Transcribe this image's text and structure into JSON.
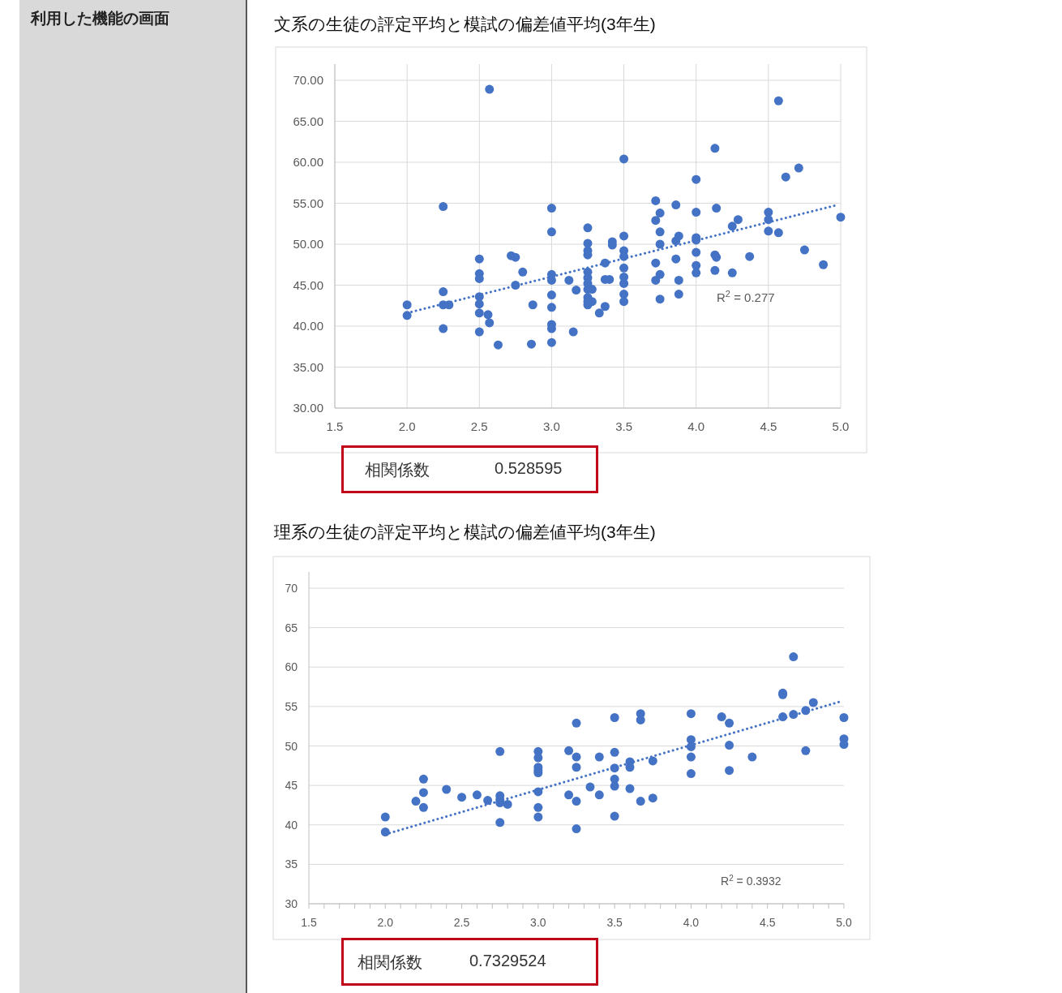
{
  "chart_data": [
    {
      "type": "scatter",
      "title": "文系の生徒の評定平均と模試の偏差値平均(3年生)",
      "xlim": [
        1.5,
        5.0
      ],
      "ylim": [
        30,
        70
      ],
      "grid": true,
      "marker": "circle",
      "xticks": [
        {
          "value": 1.5,
          "label": "1.5"
        },
        {
          "value": 2.0,
          "label": "2.0"
        },
        {
          "value": 2.5,
          "label": "2.5"
        },
        {
          "value": 3.0,
          "label": "3.0"
        },
        {
          "value": 3.5,
          "label": "3.5"
        },
        {
          "value": 4.0,
          "label": "4.0"
        },
        {
          "value": 4.5,
          "label": "4.5"
        },
        {
          "value": 5.0,
          "label": "5.0"
        }
      ],
      "yticks": [
        {
          "value": 30,
          "label": "30.00"
        },
        {
          "value": 35,
          "label": "35.00"
        },
        {
          "value": 40,
          "label": "40.00"
        },
        {
          "value": 45,
          "label": "45.00"
        },
        {
          "value": 50,
          "label": "50.00"
        },
        {
          "value": 55,
          "label": "55.00"
        },
        {
          "value": 60,
          "label": "60.00"
        },
        {
          "value": 65,
          "label": "65.00"
        },
        {
          "value": 70,
          "label": "70.00"
        }
      ],
      "series": [
        {
          "color": "#4472c4",
          "x": [
            2.57,
            2.25,
            2.0,
            2.0,
            2.25,
            2.25,
            2.29,
            2.25,
            2.5,
            2.5,
            2.5,
            2.5,
            2.5,
            2.5,
            2.56,
            2.57,
            2.5,
            2.63,
            2.72,
            2.75,
            2.8,
            2.75,
            2.87,
            2.86,
            3.0,
            3.0,
            3.0,
            3.0,
            3.0,
            3.0,
            3.0,
            3.0,
            3.0,
            3.12,
            3.17,
            3.15,
            3.25,
            3.25,
            3.25,
            3.25,
            3.25,
            3.25,
            3.25,
            3.25,
            3.25,
            3.25,
            3.25,
            3.28,
            3.28,
            3.37,
            3.37,
            3.4,
            3.37,
            3.33,
            3.42,
            3.42,
            3.5,
            3.5,
            3.5,
            3.5,
            3.5,
            3.5,
            3.5,
            3.5,
            3.5,
            3.72,
            3.75,
            3.72,
            3.75,
            3.75,
            3.72,
            3.75,
            3.72,
            3.75,
            3.86,
            3.86,
            3.88,
            3.86,
            3.88,
            3.88,
            4.0,
            4.0,
            4.0,
            4.0,
            4.0,
            4.0,
            4.0,
            4.13,
            4.14,
            4.13,
            4.14,
            4.13,
            4.25,
            4.29,
            4.25,
            4.37,
            4.5,
            4.5,
            4.5,
            4.57,
            4.57,
            4.62,
            4.71,
            4.75,
            4.88,
            5.0
          ],
          "values": [
            68.9,
            54.6,
            42.6,
            41.3,
            44.2,
            42.6,
            42.6,
            39.7,
            48.2,
            46.4,
            45.8,
            43.6,
            42.7,
            41.6,
            41.4,
            40.4,
            39.3,
            37.7,
            48.6,
            48.4,
            46.6,
            45.0,
            42.6,
            37.8,
            54.4,
            51.5,
            46.3,
            45.6,
            43.8,
            42.3,
            40.2,
            39.7,
            38.0,
            45.6,
            44.4,
            39.3,
            52.0,
            50.1,
            49.2,
            48.7,
            46.6,
            45.9,
            45.2,
            44.5,
            43.5,
            43.0,
            42.6,
            44.5,
            43.0,
            47.7,
            45.7,
            45.7,
            42.4,
            41.6,
            50.3,
            49.9,
            60.4,
            51.0,
            49.2,
            48.5,
            47.1,
            46.0,
            45.2,
            43.9,
            43.0,
            55.3,
            53.8,
            52.9,
            51.5,
            50.0,
            47.7,
            46.3,
            45.6,
            43.3,
            54.8,
            50.4,
            51.0,
            48.2,
            45.6,
            43.9,
            57.9,
            53.9,
            50.8,
            50.5,
            49.0,
            47.4,
            46.5,
            61.7,
            54.4,
            48.7,
            48.4,
            46.8,
            52.2,
            53.0,
            46.5,
            48.5,
            53.9,
            53.0,
            51.6,
            51.4,
            67.5,
            58.2,
            59.3,
            49.3,
            47.5,
            53.3
          ]
        },
        {
          "type": "line",
          "color": "#4472c4",
          "marker": "none",
          "line_style": "dotted",
          "x": [
            2.0,
            4.98
          ],
          "values": [
            41.6,
            54.8
          ]
        }
      ],
      "annotations": [
        "利用した機能の画面",
        "R$^{2}$ = 0.277",
        "相関係数",
        "0.528595"
      ]
    },
    {
      "type": "scatter",
      "title": "理系の生徒の評定平均と模試の偏差値平均(3年生)",
      "xlim": [
        1.5,
        5.0
      ],
      "ylim": [
        30,
        70
      ],
      "grid": "y",
      "marker": "circle",
      "xticks": [
        {
          "value": 1.5,
          "label": "1.5"
        },
        {
          "value": 1.6,
          "label": null
        },
        {
          "value": 1.7,
          "label": null
        },
        {
          "value": 1.8,
          "label": null
        },
        {
          "value": 1.9,
          "label": null
        },
        {
          "value": 2.0,
          "label": "2.0"
        },
        {
          "value": 2.1,
          "label": null
        },
        {
          "value": 2.2,
          "label": null
        },
        {
          "value": 2.3,
          "label": null
        },
        {
          "value": 2.4,
          "label": null
        },
        {
          "value": 2.5,
          "label": "2.5"
        },
        {
          "value": 2.6,
          "label": null
        },
        {
          "value": 2.7,
          "label": null
        },
        {
          "value": 2.8,
          "label": null
        },
        {
          "value": 2.9,
          "label": null
        },
        {
          "value": 3.0,
          "label": "3.0"
        },
        {
          "value": 3.1,
          "label": null
        },
        {
          "value": 3.2,
          "label": null
        },
        {
          "value": 3.3,
          "label": null
        },
        {
          "value": 3.4,
          "label": null
        },
        {
          "value": 3.5,
          "label": "3.5"
        },
        {
          "value": 3.6,
          "label": null
        },
        {
          "value": 3.7,
          "label": null
        },
        {
          "value": 3.8,
          "label": null
        },
        {
          "value": 3.9,
          "label": null
        },
        {
          "value": 4.0,
          "label": "4.0"
        },
        {
          "value": 4.1,
          "label": null
        },
        {
          "value": 4.2,
          "label": null
        },
        {
          "value": 4.3,
          "label": null
        },
        {
          "value": 4.4,
          "label": null
        },
        {
          "value": 4.5,
          "label": "4.5"
        },
        {
          "value": 4.6,
          "label": null
        },
        {
          "value": 4.7,
          "label": null
        },
        {
          "value": 4.8,
          "label": null
        },
        {
          "value": 4.9,
          "label": null
        },
        {
          "value": 5.0,
          "label": "5.0"
        }
      ],
      "yticks": [
        30,
        35,
        40,
        45,
        50,
        55,
        60,
        65,
        70
      ],
      "series": [
        {
          "color": "#4472c4",
          "x": [
            2.0,
            2.0,
            2.2,
            2.25,
            2.25,
            2.25,
            2.4,
            2.5,
            2.6,
            2.67,
            2.75,
            2.75,
            2.75,
            2.75,
            2.8,
            2.75,
            3.0,
            3.0,
            3.0,
            3.0,
            3.0,
            3.0,
            3.0,
            3.0,
            3.2,
            3.2,
            3.25,
            3.25,
            3.25,
            3.25,
            3.25,
            3.34,
            3.4,
            3.4,
            3.5,
            3.5,
            3.5,
            3.5,
            3.5,
            3.5,
            3.6,
            3.6,
            3.6,
            3.67,
            3.67,
            3.67,
            3.75,
            3.75,
            4.0,
            4.0,
            4.0,
            4.0,
            4.0,
            4.2,
            4.25,
            4.25,
            4.25,
            4.4,
            4.6,
            4.6,
            4.6,
            4.67,
            4.67,
            4.75,
            4.75,
            4.8,
            5.0,
            5.0,
            5.0
          ],
          "values": [
            41.0,
            39.1,
            43.0,
            45.8,
            44.1,
            42.2,
            44.5,
            43.5,
            43.8,
            43.1,
            49.3,
            43.7,
            43.2,
            42.8,
            42.6,
            40.3,
            49.3,
            48.5,
            47.3,
            46.9,
            46.6,
            44.2,
            42.2,
            41.0,
            49.4,
            43.8,
            52.9,
            48.6,
            47.3,
            43.0,
            39.5,
            44.8,
            48.6,
            43.8,
            53.6,
            49.2,
            47.2,
            45.8,
            44.9,
            41.1,
            48.0,
            47.3,
            44.6,
            54.1,
            53.3,
            43.0,
            48.1,
            43.4,
            54.1,
            50.8,
            49.9,
            48.6,
            46.5,
            53.7,
            52.9,
            50.1,
            46.9,
            48.6,
            56.7,
            56.5,
            53.7,
            61.3,
            54.0,
            54.5,
            49.4,
            55.5,
            53.6,
            50.9,
            50.2
          ]
        },
        {
          "type": "line",
          "color": "#4472c4",
          "marker": "none",
          "line_style": "dotted",
          "x": [
            2.0,
            4.99
          ],
          "values": [
            38.8,
            55.7
          ]
        }
      ],
      "annotations": [
        "R$^{2}$ = 0.3932",
        "相関係数",
        "0.7329524"
      ]
    }
  ]
}
